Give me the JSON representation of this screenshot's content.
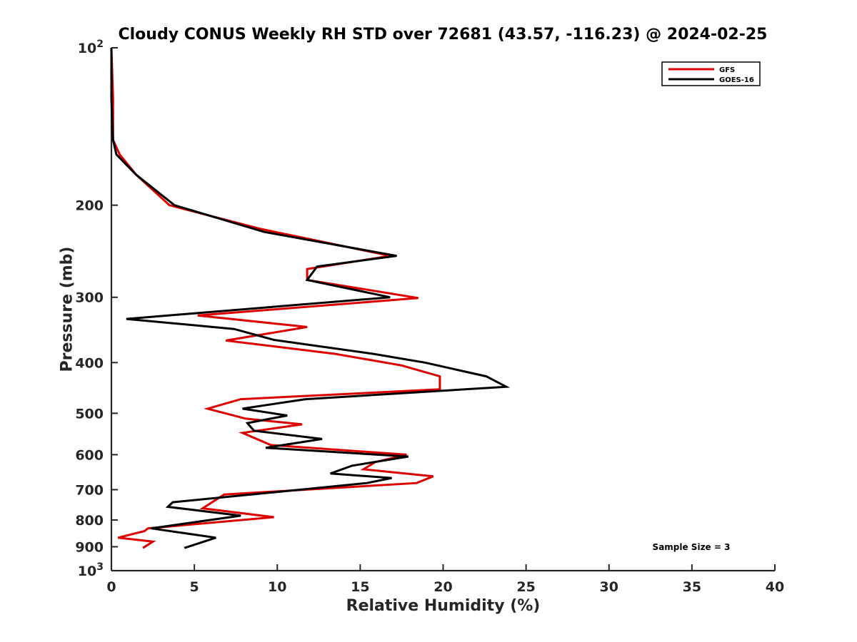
{
  "chart_data": {
    "type": "line",
    "title": "Cloudy CONUS Weekly RH STD over 72681 (43.57, -116.23) @ 2024-02-25",
    "xlabel": "Relative Humidity (%)",
    "ylabel": "Pressure (mb)",
    "xlim": [
      0,
      40
    ],
    "ylim": [
      100,
      1000
    ],
    "y_scale": "log",
    "y_reversed": true,
    "x_ticks": [
      "0",
      "5",
      "10",
      "15",
      "20",
      "25",
      "30",
      "35",
      "40"
    ],
    "y_ticks": [
      {
        "value": 100,
        "base": "10",
        "exp": "2"
      },
      {
        "value": 200,
        "label": "200"
      },
      {
        "value": 300,
        "label": "300"
      },
      {
        "value": 400,
        "label": "400"
      },
      {
        "value": 500,
        "label": "500"
      },
      {
        "value": 600,
        "label": "600"
      },
      {
        "value": 700,
        "label": "700"
      },
      {
        "value": 800,
        "label": "800"
      },
      {
        "value": 900,
        "label": "900"
      },
      {
        "value": 1000,
        "base": "10",
        "exp": "3"
      }
    ],
    "legend_position": "top-right",
    "annotation": "Sample Size = 3",
    "series": [
      {
        "name": "GFS",
        "color": "#dd0000",
        "points": [
          [
            0.0,
            100
          ],
          [
            0.1,
            125
          ],
          [
            0.1,
            150
          ],
          [
            0.5,
            160
          ],
          [
            1.5,
            175
          ],
          [
            3.5,
            200
          ],
          [
            9.0,
            222
          ],
          [
            16.8,
            250
          ],
          [
            11.8,
            265
          ],
          [
            11.8,
            278
          ],
          [
            18.5,
            301
          ],
          [
            5.2,
            325
          ],
          [
            11.8,
            342
          ],
          [
            6.9,
            363
          ],
          [
            13.5,
            385
          ],
          [
            17.5,
            405
          ],
          [
            19.8,
            425
          ],
          [
            19.8,
            450
          ],
          [
            7.8,
            470
          ],
          [
            5.8,
            490
          ],
          [
            8.1,
            512
          ],
          [
            11.5,
            525
          ],
          [
            7.9,
            545
          ],
          [
            9.6,
            575
          ],
          [
            17.8,
            600
          ],
          [
            15.9,
            620
          ],
          [
            15.2,
            640
          ],
          [
            19.4,
            660
          ],
          [
            18.4,
            680
          ],
          [
            6.8,
            715
          ],
          [
            5.5,
            760
          ],
          [
            9.8,
            790
          ],
          [
            2.2,
            830
          ],
          [
            2.0,
            840
          ],
          [
            0.4,
            865
          ],
          [
            2.5,
            880
          ],
          [
            1.9,
            905
          ]
        ]
      },
      {
        "name": "GOES-16",
        "color": "#000000",
        "points": [
          [
            0.0,
            100
          ],
          [
            0.0,
            125
          ],
          [
            0.1,
            150
          ],
          [
            0.3,
            160
          ],
          [
            1.5,
            175
          ],
          [
            3.8,
            200
          ],
          [
            9.2,
            225
          ],
          [
            17.2,
            250
          ],
          [
            12.4,
            262
          ],
          [
            11.8,
            278
          ],
          [
            16.8,
            300
          ],
          [
            0.9,
            330
          ],
          [
            7.4,
            345
          ],
          [
            9.8,
            362
          ],
          [
            15.8,
            385
          ],
          [
            18.9,
            400
          ],
          [
            22.6,
            425
          ],
          [
            23.8,
            445
          ],
          [
            11.7,
            470
          ],
          [
            7.9,
            490
          ],
          [
            10.6,
            505
          ],
          [
            8.2,
            522
          ],
          [
            8.6,
            540
          ],
          [
            12.7,
            560
          ],
          [
            9.3,
            582
          ],
          [
            17.9,
            605
          ],
          [
            14.5,
            630
          ],
          [
            13.2,
            652
          ],
          [
            16.9,
            665
          ],
          [
            15.4,
            680
          ],
          [
            3.7,
            740
          ],
          [
            3.4,
            755
          ],
          [
            7.8,
            785
          ],
          [
            2.4,
            830
          ],
          [
            6.3,
            865
          ],
          [
            4.4,
            905
          ]
        ]
      }
    ]
  }
}
